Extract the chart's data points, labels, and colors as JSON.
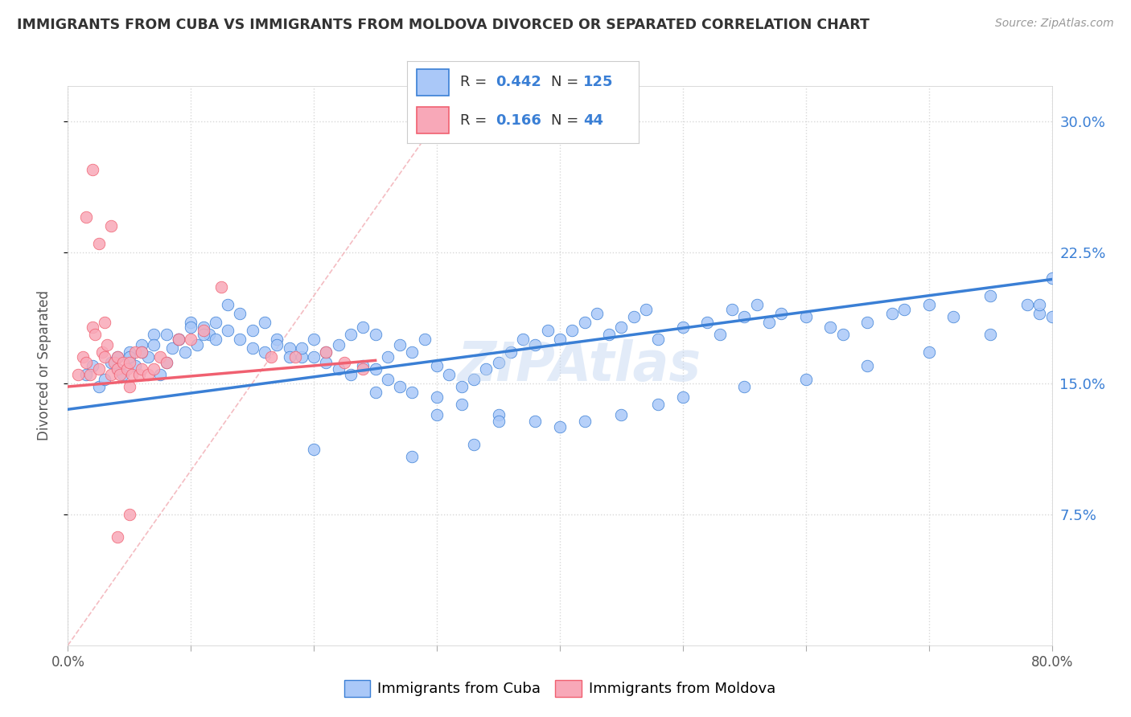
{
  "title": "IMMIGRANTS FROM CUBA VS IMMIGRANTS FROM MOLDOVA DIVORCED OR SEPARATED CORRELATION CHART",
  "source": "Source: ZipAtlas.com",
  "ylabel": "Divorced or Separated",
  "xlim": [
    0.0,
    0.8
  ],
  "ylim": [
    0.0,
    0.32
  ],
  "yticks": [
    0.075,
    0.15,
    0.225,
    0.3
  ],
  "ytick_labels": [
    "7.5%",
    "15.0%",
    "22.5%",
    "30.0%"
  ],
  "xtick_positions": [
    0.0,
    0.1,
    0.2,
    0.3,
    0.4,
    0.5,
    0.6,
    0.7,
    0.8
  ],
  "xtick_labels": [
    "0.0%",
    "",
    "",
    "",
    "",
    "",
    "",
    "",
    "80.0%"
  ],
  "cuba_R": 0.442,
  "cuba_N": 125,
  "moldova_R": 0.166,
  "moldova_N": 44,
  "cuba_color": "#aac8f8",
  "moldova_color": "#f8a8b8",
  "cuba_line_color": "#3a7fd5",
  "moldova_line_color": "#f06070",
  "diagonal_color": "#cccccc",
  "watermark": "ZIPAtlas",
  "background_color": "#ffffff",
  "grid_color": "#d8d8d8",
  "title_color": "#333333",
  "right_ytick_color": "#3a7fd5",
  "cuba_line_intercept": 0.135,
  "cuba_line_slope": 0.093,
  "moldova_line_intercept": 0.148,
  "moldova_line_slope": 0.06,
  "cuba_scatter_x": [
    0.015,
    0.02,
    0.025,
    0.03,
    0.035,
    0.04,
    0.04,
    0.045,
    0.05,
    0.055,
    0.06,
    0.065,
    0.07,
    0.075,
    0.08,
    0.085,
    0.09,
    0.095,
    0.1,
    0.105,
    0.11,
    0.115,
    0.12,
    0.13,
    0.14,
    0.15,
    0.16,
    0.17,
    0.18,
    0.19,
    0.2,
    0.21,
    0.22,
    0.23,
    0.24,
    0.25,
    0.26,
    0.27,
    0.28,
    0.29,
    0.3,
    0.31,
    0.32,
    0.33,
    0.34,
    0.35,
    0.36,
    0.37,
    0.38,
    0.39,
    0.4,
    0.41,
    0.42,
    0.43,
    0.44,
    0.45,
    0.46,
    0.47,
    0.48,
    0.5,
    0.52,
    0.53,
    0.54,
    0.55,
    0.56,
    0.57,
    0.58,
    0.6,
    0.62,
    0.63,
    0.65,
    0.67,
    0.68,
    0.7,
    0.72,
    0.75,
    0.78,
    0.79,
    0.8,
    0.05,
    0.06,
    0.07,
    0.08,
    0.09,
    0.1,
    0.11,
    0.12,
    0.13,
    0.14,
    0.15,
    0.16,
    0.17,
    0.18,
    0.19,
    0.2,
    0.21,
    0.22,
    0.23,
    0.24,
    0.25,
    0.26,
    0.27,
    0.28,
    0.3,
    0.32,
    0.35,
    0.38,
    0.4,
    0.42,
    0.45,
    0.48,
    0.5,
    0.55,
    0.6,
    0.65,
    0.7,
    0.75,
    0.79,
    0.8,
    0.35,
    0.25,
    0.3,
    0.2,
    0.28,
    0.33
  ],
  "cuba_scatter_y": [
    0.155,
    0.16,
    0.148,
    0.152,
    0.162,
    0.158,
    0.165,
    0.155,
    0.168,
    0.16,
    0.172,
    0.165,
    0.178,
    0.155,
    0.162,
    0.17,
    0.175,
    0.168,
    0.185,
    0.172,
    0.182,
    0.178,
    0.175,
    0.195,
    0.19,
    0.18,
    0.185,
    0.175,
    0.17,
    0.165,
    0.175,
    0.168,
    0.172,
    0.178,
    0.182,
    0.178,
    0.165,
    0.172,
    0.168,
    0.175,
    0.16,
    0.155,
    0.148,
    0.152,
    0.158,
    0.162,
    0.168,
    0.175,
    0.172,
    0.18,
    0.175,
    0.18,
    0.185,
    0.19,
    0.178,
    0.182,
    0.188,
    0.192,
    0.175,
    0.182,
    0.185,
    0.178,
    0.192,
    0.188,
    0.195,
    0.185,
    0.19,
    0.188,
    0.182,
    0.178,
    0.185,
    0.19,
    0.192,
    0.195,
    0.188,
    0.2,
    0.195,
    0.19,
    0.21,
    0.165,
    0.168,
    0.172,
    0.178,
    0.175,
    0.182,
    0.178,
    0.185,
    0.18,
    0.175,
    0.17,
    0.168,
    0.172,
    0.165,
    0.17,
    0.165,
    0.162,
    0.158,
    0.155,
    0.16,
    0.158,
    0.152,
    0.148,
    0.145,
    0.142,
    0.138,
    0.132,
    0.128,
    0.125,
    0.128,
    0.132,
    0.138,
    0.142,
    0.148,
    0.152,
    0.16,
    0.168,
    0.178,
    0.195,
    0.188,
    0.128,
    0.145,
    0.132,
    0.112,
    0.108,
    0.115
  ],
  "moldova_scatter_x": [
    0.008,
    0.012,
    0.015,
    0.018,
    0.02,
    0.022,
    0.025,
    0.028,
    0.03,
    0.032,
    0.035,
    0.038,
    0.04,
    0.04,
    0.042,
    0.045,
    0.048,
    0.05,
    0.05,
    0.052,
    0.055,
    0.058,
    0.06,
    0.06,
    0.065,
    0.07,
    0.075,
    0.08,
    0.09,
    0.1,
    0.11,
    0.125,
    0.165,
    0.185,
    0.21,
    0.225,
    0.24,
    0.015,
    0.025,
    0.03,
    0.02,
    0.035,
    0.05,
    0.04
  ],
  "moldova_scatter_y": [
    0.155,
    0.165,
    0.162,
    0.155,
    0.182,
    0.178,
    0.158,
    0.168,
    0.165,
    0.172,
    0.155,
    0.162,
    0.165,
    0.158,
    0.155,
    0.162,
    0.158,
    0.148,
    0.162,
    0.155,
    0.168,
    0.155,
    0.158,
    0.168,
    0.155,
    0.158,
    0.165,
    0.162,
    0.175,
    0.175,
    0.18,
    0.205,
    0.165,
    0.165,
    0.168,
    0.162,
    0.158,
    0.245,
    0.23,
    0.185,
    0.272,
    0.24,
    0.075,
    0.062
  ]
}
